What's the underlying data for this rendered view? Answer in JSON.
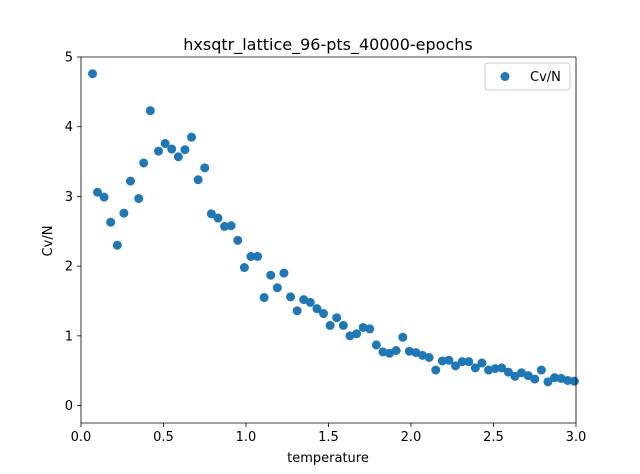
{
  "chart_data": {
    "type": "scatter",
    "title": "hxsqtr_lattice_96-pts_40000-epochs",
    "xlabel": "temperature",
    "ylabel": "Cv/N",
    "xlim": [
      0.0,
      3.0
    ],
    "ylim": [
      -0.25,
      5.0
    ],
    "xticks": [
      0.0,
      0.5,
      1.0,
      1.5,
      2.0,
      2.5,
      3.0
    ],
    "xtick_labels": [
      "0.0",
      "0.5",
      "1.0",
      "1.5",
      "2.0",
      "2.5",
      "3.0"
    ],
    "yticks": [
      0,
      1,
      2,
      3,
      4,
      5
    ],
    "ytick_labels": [
      "0",
      "1",
      "2",
      "3",
      "4",
      "5"
    ],
    "grid": false,
    "legend_position": "top-right",
    "color": "#1f77b4",
    "series": [
      {
        "name": "Cv/N",
        "x": [
          0.07,
          0.1,
          0.14,
          0.18,
          0.22,
          0.26,
          0.3,
          0.35,
          0.38,
          0.42,
          0.47,
          0.51,
          0.55,
          0.59,
          0.63,
          0.67,
          0.71,
          0.75,
          0.79,
          0.83,
          0.87,
          0.91,
          0.95,
          0.99,
          1.03,
          1.07,
          1.11,
          1.15,
          1.19,
          1.23,
          1.27,
          1.31,
          1.35,
          1.39,
          1.43,
          1.47,
          1.51,
          1.55,
          1.59,
          1.63,
          1.67,
          1.71,
          1.75,
          1.79,
          1.83,
          1.87,
          1.91,
          1.95,
          1.99,
          2.03,
          2.07,
          2.11,
          2.15,
          2.19,
          2.23,
          2.27,
          2.31,
          2.35,
          2.39,
          2.43,
          2.47,
          2.51,
          2.55,
          2.59,
          2.63,
          2.67,
          2.71,
          2.75,
          2.79,
          2.83,
          2.87,
          2.91,
          2.95,
          2.99
        ],
        "y": [
          4.76,
          3.06,
          2.99,
          2.63,
          2.3,
          2.76,
          3.22,
          2.97,
          3.48,
          4.23,
          3.65,
          3.76,
          3.68,
          3.57,
          3.67,
          3.85,
          3.24,
          3.41,
          2.75,
          2.69,
          2.57,
          2.58,
          2.37,
          1.98,
          2.14,
          2.14,
          1.55,
          1.87,
          1.69,
          1.9,
          1.56,
          1.36,
          1.52,
          1.48,
          1.39,
          1.32,
          1.15,
          1.26,
          1.15,
          1.0,
          1.03,
          1.12,
          1.1,
          0.87,
          0.77,
          0.75,
          0.79,
          0.98,
          0.78,
          0.76,
          0.72,
          0.69,
          0.51,
          0.64,
          0.65,
          0.57,
          0.63,
          0.63,
          0.54,
          0.61,
          0.51,
          0.53,
          0.54,
          0.48,
          0.42,
          0.47,
          0.43,
          0.38,
          0.51,
          0.34,
          0.4,
          0.39,
          0.36,
          0.35
        ]
      }
    ]
  }
}
